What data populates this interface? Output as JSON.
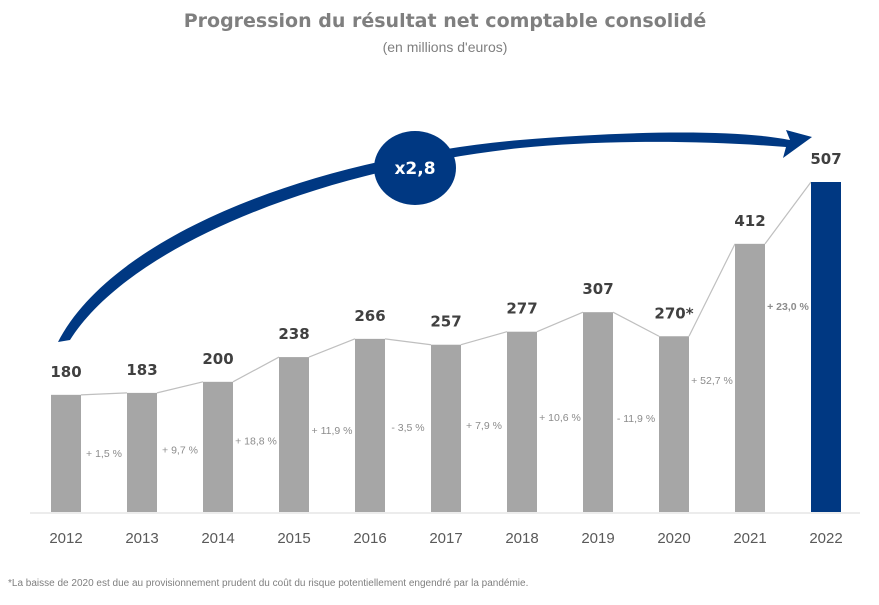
{
  "chart_data": {
    "type": "bar",
    "title": "Progression du résultat net comptable consolidé",
    "subtitle": "(en millions d'euros)",
    "categories": [
      "2012",
      "2013",
      "2014",
      "2015",
      "2016",
      "2017",
      "2018",
      "2019",
      "2020",
      "2021",
      "2022"
    ],
    "values": [
      180,
      183,
      200,
      238,
      266,
      257,
      277,
      307,
      270,
      412,
      507
    ],
    "value_labels": [
      "180",
      "183",
      "200",
      "238",
      "266",
      "257",
      "277",
      "307",
      "270*",
      "412",
      "507"
    ],
    "growth_labels": [
      "+ 1,5 %",
      "+ 9,7 %",
      "+ 18,8 %",
      "+ 11,9 %",
      "- 3,5 %",
      "+ 7,9 %",
      "+ 10,6 %",
      "- 11,9 %",
      "+ 52,7 %",
      "+ 23,0 %"
    ],
    "ylim": [
      0,
      507
    ],
    "grid": false,
    "multiplier_label": "x2,8",
    "footnote": "*La baisse de 2020 est due au provisionnement prudent du coût du risque potentiellement engendré par la pandémie.",
    "colors": {
      "bar": "#a6a6a6",
      "highlight_bar": "#003882",
      "line": "#bfbfbf",
      "highlight_text": "#1f3c88"
    }
  }
}
